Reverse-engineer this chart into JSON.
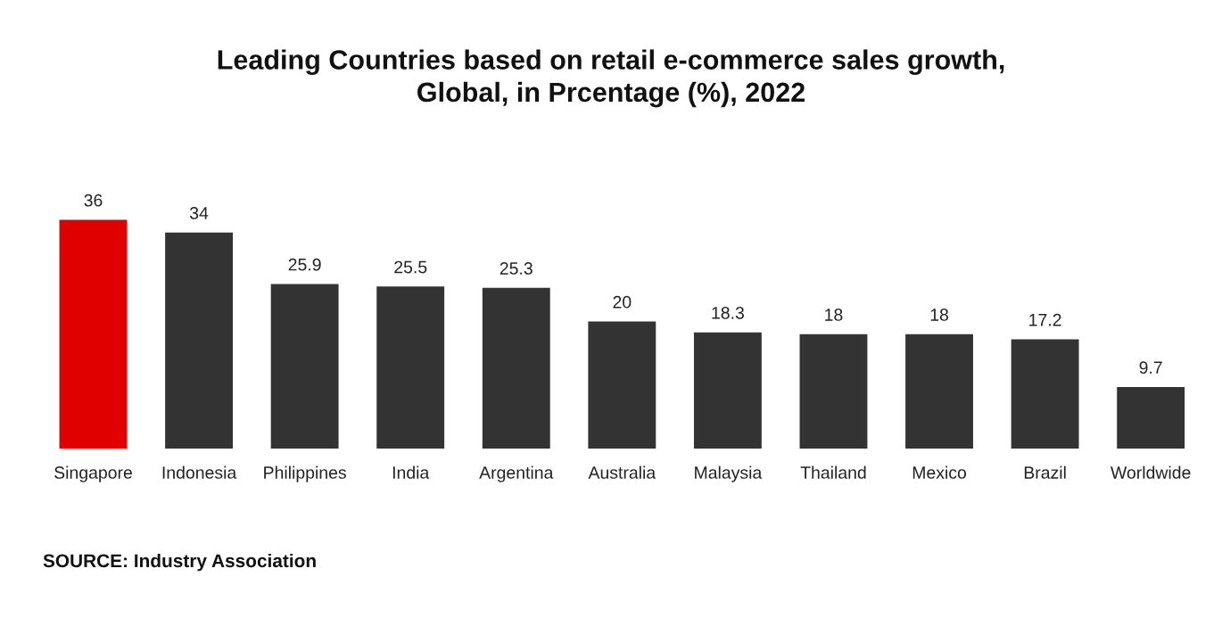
{
  "chart_data": {
    "type": "bar",
    "title": "Leading Countries based on retail e-commerce sales growth,\nGlobal, in Prcentage (%), 2022",
    "categories": [
      "Singapore",
      "Indonesia",
      "Philippines",
      "India",
      "Argentina",
      "Australia",
      "Malaysia",
      "Thailand",
      "Mexico",
      "Brazil",
      "Worldwide"
    ],
    "values": [
      36,
      34,
      25.9,
      25.5,
      25.3,
      20,
      18.3,
      18,
      18,
      17.2,
      9.7
    ],
    "colors": [
      "#e00000",
      "#333333",
      "#333333",
      "#333333",
      "#333333",
      "#333333",
      "#333333",
      "#333333",
      "#333333",
      "#333333",
      "#333333"
    ],
    "data_labels": true,
    "grid": false,
    "legend": false,
    "annotations": [
      "SOURCE: Industry Association"
    ]
  }
}
